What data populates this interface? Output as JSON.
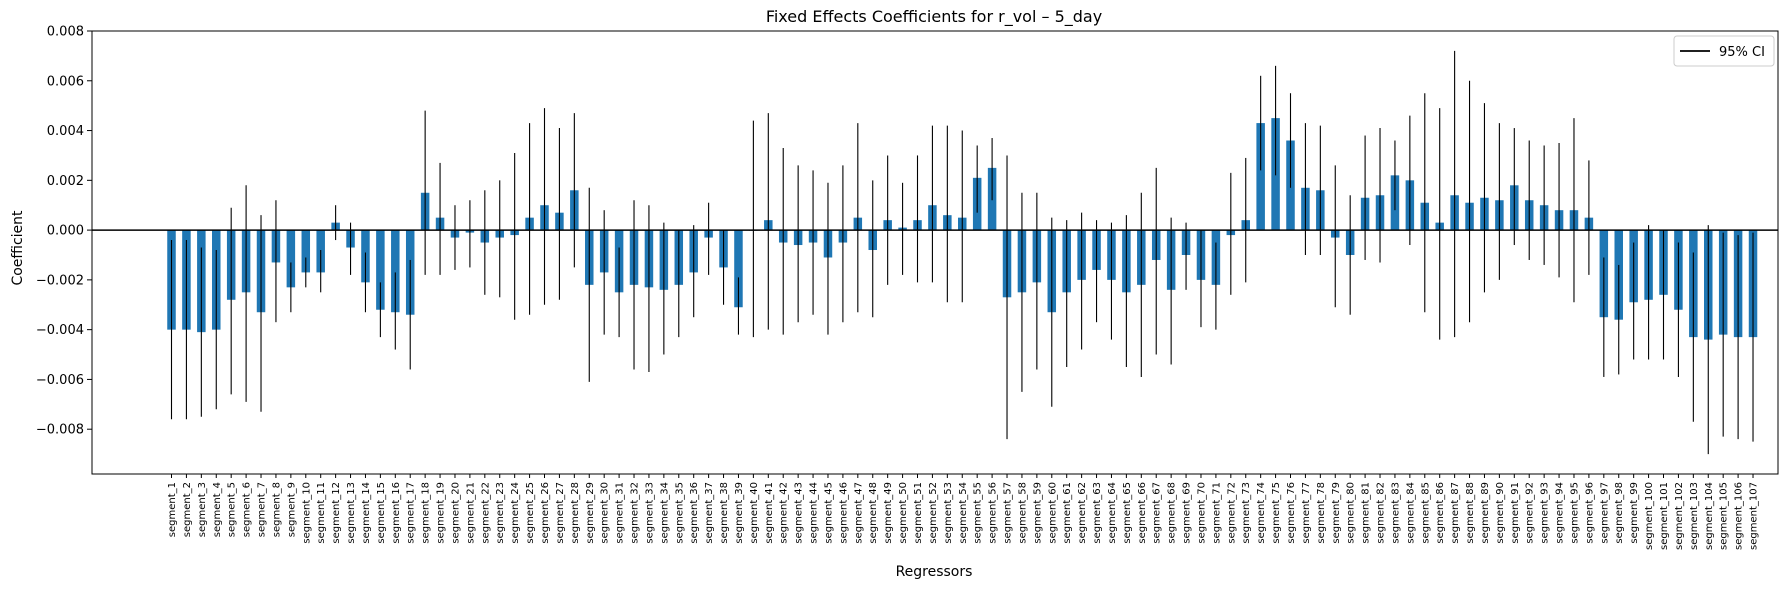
{
  "chart_data": {
    "type": "bar",
    "title": "Fixed Effects Coefficients for r_vol – 5_day",
    "xlabel": "Regressors",
    "ylabel": "Coefficient",
    "ylim": [
      -0.0098,
      0.008
    ],
    "yticks": [
      -0.008,
      -0.006,
      -0.004,
      -0.002,
      0.0,
      0.002,
      0.004,
      0.006,
      0.008
    ],
    "ytick_labels": [
      "−0.008",
      "−0.006",
      "−0.004",
      "−0.002",
      "0.000",
      "0.002",
      "0.004",
      "0.006",
      "0.008"
    ],
    "bar_color": "#1f77b4",
    "errorbar_color": "#000000",
    "grid": false,
    "legend": {
      "position": "top-right",
      "entries": [
        "95% CI"
      ]
    },
    "categories": [
      "segment_1",
      "segment_2",
      "segment_3",
      "segment_4",
      "segment_5",
      "segment_6",
      "segment_7",
      "segment_8",
      "segment_9",
      "segment_10",
      "segment_11",
      "segment_12",
      "segment_13",
      "segment_14",
      "segment_15",
      "segment_16",
      "segment_17",
      "segment_18",
      "segment_19",
      "segment_20",
      "segment_21",
      "segment_22",
      "segment_23",
      "segment_24",
      "segment_25",
      "segment_26",
      "segment_27",
      "segment_28",
      "segment_29",
      "segment_30",
      "segment_31",
      "segment_32",
      "segment_33",
      "segment_34",
      "segment_35",
      "segment_36",
      "segment_37",
      "segment_38",
      "segment_39",
      "segment_40",
      "segment_41",
      "segment_42",
      "segment_43",
      "segment_44",
      "segment_45",
      "segment_46",
      "segment_47",
      "segment_48",
      "segment_49",
      "segment_50",
      "segment_51",
      "segment_52",
      "segment_53",
      "segment_54",
      "segment_55",
      "segment_56",
      "segment_57",
      "segment_58",
      "segment_59",
      "segment_60",
      "segment_61",
      "segment_62",
      "segment_63",
      "segment_64",
      "segment_65",
      "segment_66",
      "segment_67",
      "segment_68",
      "segment_69",
      "segment_70",
      "segment_71",
      "segment_72",
      "segment_73",
      "segment_74",
      "segment_75",
      "segment_76",
      "segment_77",
      "segment_78",
      "segment_79",
      "segment_80",
      "segment_81",
      "segment_82",
      "segment_83",
      "segment_84",
      "segment_85",
      "segment_86",
      "segment_87",
      "segment_88",
      "segment_89",
      "segment_90",
      "segment_91",
      "segment_92",
      "segment_93",
      "segment_94",
      "segment_95",
      "segment_96",
      "segment_97",
      "segment_98",
      "segment_99",
      "segment_100",
      "segment_101",
      "segment_102",
      "segment_103",
      "segment_104",
      "segment_105",
      "segment_106",
      "segment_107"
    ],
    "values": [
      -0.004,
      -0.004,
      -0.0041,
      -0.004,
      -0.0028,
      -0.0025,
      -0.0033,
      -0.0013,
      -0.0023,
      -0.0017,
      -0.0017,
      0.0003,
      -0.0007,
      -0.0021,
      -0.0032,
      -0.0033,
      -0.0034,
      0.0015,
      0.0005,
      -0.0003,
      -0.0001,
      -0.0005,
      -0.0003,
      -0.0002,
      0.0005,
      0.001,
      0.0007,
      0.0016,
      -0.0022,
      -0.0017,
      -0.0025,
      -0.0022,
      -0.0023,
      -0.0024,
      -0.0022,
      -0.0017,
      -0.0003,
      -0.0015,
      -0.0031,
      0.0,
      0.0004,
      -0.0005,
      -0.0006,
      -0.0005,
      -0.0011,
      -0.0005,
      0.0005,
      -0.0008,
      0.0004,
      0.0001,
      0.0004,
      0.001,
      0.0006,
      0.0005,
      0.0021,
      0.0025,
      -0.0027,
      -0.0025,
      -0.0021,
      -0.0033,
      -0.0025,
      -0.002,
      -0.0016,
      -0.002,
      -0.0025,
      -0.0022,
      -0.0012,
      -0.0024,
      -0.001,
      -0.002,
      -0.0022,
      -0.0002,
      0.0004,
      0.0043,
      0.0045,
      0.0036,
      0.0017,
      0.0016,
      -0.0003,
      -0.001,
      0.0013,
      0.0014,
      0.0022,
      0.002,
      0.0011,
      0.0003,
      0.0014,
      0.0011,
      0.0013,
      0.0012,
      0.0018,
      0.0012,
      0.001,
      0.0008,
      0.0008,
      0.0005,
      -0.0035,
      -0.0036,
      -0.0029,
      -0.0028,
      -0.0026,
      -0.0032,
      -0.0043,
      -0.0044,
      -0.0042,
      -0.0043,
      -0.0043
    ],
    "ci_low": [
      -0.0076,
      -0.0076,
      -0.0075,
      -0.0072,
      -0.0066,
      -0.0069,
      -0.0073,
      -0.0037,
      -0.0033,
      -0.0023,
      -0.0025,
      -0.0004,
      -0.0018,
      -0.0033,
      -0.0043,
      -0.0048,
      -0.0056,
      -0.0018,
      -0.0018,
      -0.0016,
      -0.0015,
      -0.0026,
      -0.0027,
      -0.0036,
      -0.0034,
      -0.003,
      -0.0028,
      -0.0015,
      -0.0061,
      -0.0042,
      -0.0043,
      -0.0056,
      -0.0057,
      -0.005,
      -0.0043,
      -0.0035,
      -0.0018,
      -0.003,
      -0.0042,
      -0.0043,
      -0.004,
      -0.0042,
      -0.0037,
      -0.0034,
      -0.0042,
      -0.0037,
      -0.0033,
      -0.0035,
      -0.0022,
      -0.0018,
      -0.0021,
      -0.0021,
      -0.0029,
      -0.0029,
      0.0007,
      0.0012,
      -0.0084,
      -0.0065,
      -0.0056,
      -0.0071,
      -0.0055,
      -0.0048,
      -0.0037,
      -0.0044,
      -0.0055,
      -0.0059,
      -0.005,
      -0.0054,
      -0.0024,
      -0.0039,
      -0.004,
      -0.0026,
      -0.0021,
      0.0024,
      0.0022,
      0.0017,
      -0.001,
      -0.001,
      -0.0031,
      -0.0034,
      -0.0012,
      -0.0013,
      0.0008,
      -0.0006,
      -0.0033,
      -0.0044,
      -0.0043,
      -0.0037,
      -0.0025,
      -0.002,
      -0.0006,
      -0.0012,
      -0.0014,
      -0.0019,
      -0.0029,
      -0.0018,
      -0.0059,
      -0.0058,
      -0.0052,
      -0.0052,
      -0.0052,
      -0.0059,
      -0.0077,
      -0.009,
      -0.0083,
      -0.0084,
      -0.0085
    ],
    "ci_high": [
      -0.0004,
      -0.0004,
      -0.0007,
      -0.0008,
      0.0009,
      0.0018,
      0.0006,
      0.0012,
      -0.0013,
      -0.0011,
      -0.0008,
      0.001,
      0.0003,
      -0.0009,
      -0.0021,
      -0.0017,
      -0.0012,
      0.0048,
      0.0027,
      0.001,
      0.0012,
      0.0016,
      0.002,
      0.0031,
      0.0043,
      0.0049,
      0.0041,
      0.0047,
      0.0017,
      0.0008,
      -0.0007,
      0.0012,
      0.001,
      0.0003,
      0.0,
      0.0002,
      0.0011,
      0.0,
      -0.0019,
      0.0044,
      0.0047,
      0.0033,
      0.0026,
      0.0024,
      0.0019,
      0.0026,
      0.0043,
      0.002,
      0.003,
      0.0019,
      0.003,
      0.0042,
      0.0042,
      0.004,
      0.0034,
      0.0037,
      0.003,
      0.0015,
      0.0015,
      0.0005,
      0.0004,
      0.0007,
      0.0004,
      0.0003,
      0.0006,
      0.0015,
      0.0025,
      0.0005,
      0.0003,
      0.0,
      -0.0005,
      0.0023,
      0.0029,
      0.0062,
      0.0066,
      0.0055,
      0.0043,
      0.0042,
      0.0026,
      0.0014,
      0.0038,
      0.0041,
      0.0036,
      0.0046,
      0.0055,
      0.0049,
      0.0072,
      0.006,
      0.0051,
      0.0043,
      0.0041,
      0.0036,
      0.0034,
      0.0035,
      0.0045,
      0.0028,
      -0.0011,
      -0.0014,
      -0.0005,
      0.0002,
      0.0,
      -0.0005,
      -0.0009,
      0.0002,
      -0.0001,
      -0.0002,
      -0.0001
    ]
  }
}
